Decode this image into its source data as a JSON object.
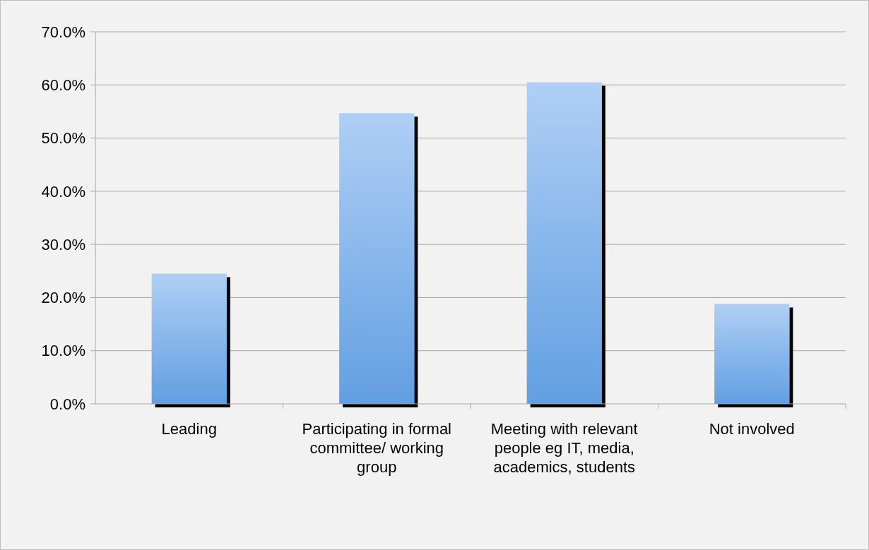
{
  "chart_data": {
    "type": "bar",
    "categories": [
      "Leading",
      "Participating in formal committee/ working group",
      "Meeting with relevant people eg IT, media, academics, students",
      "Not involved"
    ],
    "values": [
      24.5,
      54.7,
      60.5,
      18.8
    ],
    "color": "#8cbaf0",
    "ylim": [
      0,
      70
    ],
    "yticks": [
      {
        "value": 0,
        "label": "0.0%"
      },
      {
        "value": 10,
        "label": "10.0%"
      },
      {
        "value": 20,
        "label": "20.0%"
      },
      {
        "value": 30,
        "label": "30.0%"
      },
      {
        "value": 40,
        "label": "40.0%"
      },
      {
        "value": 50,
        "label": "50.0%"
      },
      {
        "value": 60,
        "label": "60.0%"
      },
      {
        "value": 70,
        "label": "70.0%"
      }
    ],
    "grid": "y"
  }
}
